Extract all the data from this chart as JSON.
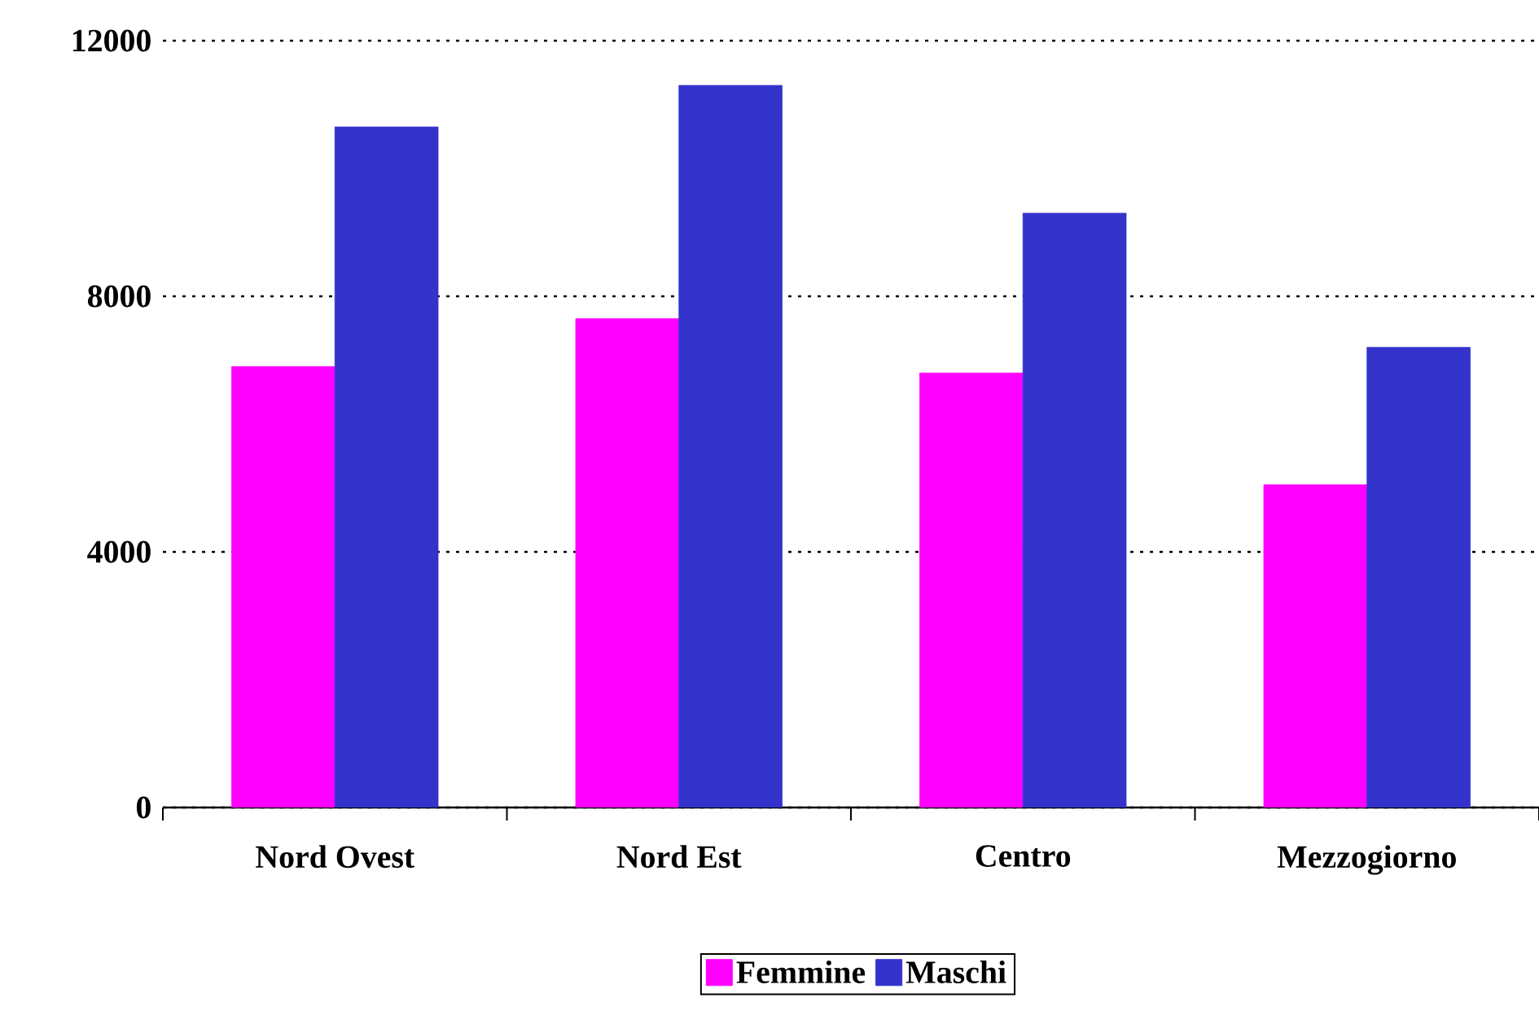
{
  "chart_data": {
    "type": "bar",
    "categories": [
      "Nord Ovest",
      "Nord Est",
      "Centro",
      "Mezzogiorno"
    ],
    "series": [
      {
        "name": "Femmine",
        "color": "#ff00ff",
        "values": [
          6900,
          7650,
          6800,
          5050
        ]
      },
      {
        "name": "Maschi",
        "color": "#3333cc",
        "values": [
          10650,
          11300,
          9300,
          7200
        ]
      }
    ],
    "ylim": [
      0,
      12000
    ],
    "yticks": [
      0,
      4000,
      8000,
      12000
    ],
    "grid": "y",
    "legend": "bottom"
  }
}
